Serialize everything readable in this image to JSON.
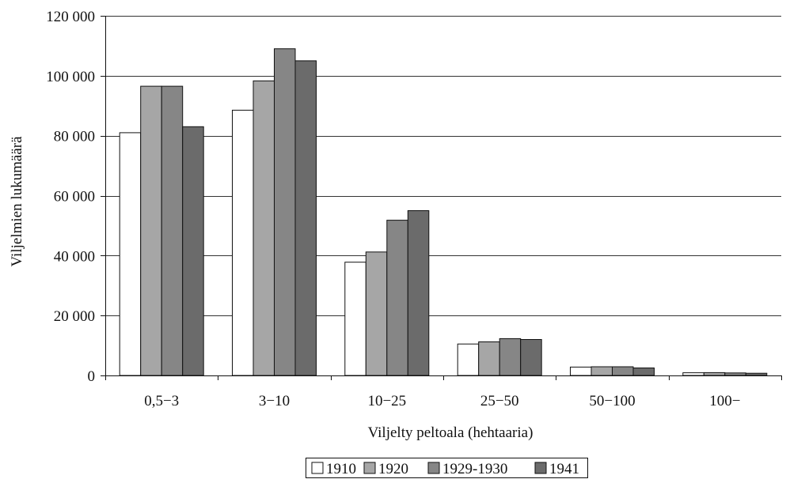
{
  "chart_data": {
    "type": "bar",
    "title": "",
    "xlabel": "Viljelty peltoala (hehtaaria)",
    "ylabel": "Viljelmien lukumäärä",
    "categories": [
      "0,5−3",
      "3−10",
      "10−25",
      "25−50",
      "50−100",
      "100−"
    ],
    "ylim": [
      0,
      120000
    ],
    "yticks": [
      0,
      20000,
      40000,
      60000,
      80000,
      100000,
      120000
    ],
    "ytick_labels": [
      "0",
      "20 000",
      "40 000",
      "60 000",
      "80 000",
      "100 000",
      "120 000"
    ],
    "grid": "horizontal",
    "legend_position": "bottom",
    "series": [
      {
        "name": "1910",
        "color": "#ffffff",
        "values": [
          81000,
          88500,
          37800,
          10500,
          2800,
          900
        ]
      },
      {
        "name": "1920",
        "color": "#a6a6a6",
        "values": [
          96500,
          98300,
          41200,
          11200,
          2900,
          950
        ]
      },
      {
        "name": "1929-1930",
        "color": "#868686",
        "values": [
          96500,
          109000,
          51800,
          12300,
          2900,
          850
        ]
      },
      {
        "name": "1941",
        "color": "#6b6b6b",
        "values": [
          83000,
          105000,
          55000,
          12000,
          2500,
          750
        ]
      }
    ]
  }
}
